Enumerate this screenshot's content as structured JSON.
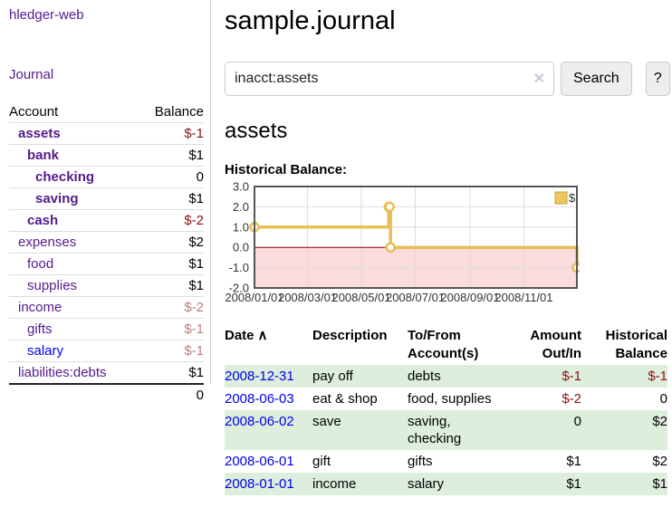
{
  "app": {
    "title": "hledger-web"
  },
  "colors": {
    "link_purple": "#551a8b",
    "link_blue": "#0000ee",
    "negative_strong": "#8b1313",
    "negative_soft": "#bc7f7f",
    "row_green": "#ddeedd",
    "chart_line_gold": "#e6bf55",
    "chart_negative_pink": "#fbdbdb",
    "zero_line_red": "#880000"
  },
  "sidebar": {
    "journal_label": "Journal",
    "table": {
      "headers": {
        "account": "Account",
        "balance": "Balance"
      },
      "rows": [
        {
          "account": "assets",
          "balance": "$-1"
        },
        {
          "account": "bank",
          "balance": "$1"
        },
        {
          "account": "checking",
          "balance": "0"
        },
        {
          "account": "saving",
          "balance": "$1"
        },
        {
          "account": "cash",
          "balance": "$-2"
        },
        {
          "account": "expenses",
          "balance": "$2"
        },
        {
          "account": "food",
          "balance": "$1"
        },
        {
          "account": "supplies",
          "balance": "$1"
        },
        {
          "account": "income",
          "balance": "$-2"
        },
        {
          "account": "gifts",
          "balance": "$-1"
        },
        {
          "account": "salary",
          "balance": "$-1"
        },
        {
          "account": "liabilities:debts",
          "balance": "$1"
        }
      ],
      "total": "0"
    }
  },
  "main": {
    "title": "sample.journal",
    "search": {
      "value": "inacct:assets",
      "clear_icon": "✕",
      "search_button": "Search",
      "help_button": "?"
    },
    "account_heading": "assets",
    "chart_label": "Historical Balance:"
  },
  "chart_data": {
    "type": "line",
    "step": true,
    "title": "Historical Balance:",
    "series": [
      {
        "name": "$",
        "points": [
          [
            "2008-01-01",
            1
          ],
          [
            "2008-06-01",
            2
          ],
          [
            "2008-06-02",
            2
          ],
          [
            "2008-06-03",
            0
          ],
          [
            "2008-12-31",
            -1
          ]
        ]
      }
    ],
    "xlim": [
      "2008-01-01",
      "2008-12-31"
    ],
    "ylim": [
      -2,
      3
    ],
    "yticks": [
      3,
      2,
      1,
      0,
      -1,
      -2
    ],
    "ytick_labels": [
      "3.0",
      "2.0",
      "1.0",
      "0.0",
      "-1.0",
      "-2.0"
    ],
    "xticks": [
      "2008-01-01",
      "2008-03-01",
      "2008-05-01",
      "2008-07-01",
      "2008-09-01",
      "2008-11-01"
    ],
    "xtick_labels": [
      "2008/01/01",
      "2008/03/01",
      "2008/05/01",
      "2008/07/01",
      "2008/09/01",
      "2008/11/01"
    ],
    "legend": {
      "label": "$",
      "position": "top-right"
    },
    "grid": true,
    "line_color": "#e6bf55",
    "negative_region_fill": "#fbdbdb",
    "zero_line_color": "#880000"
  },
  "register": {
    "headers": {
      "date": "Date",
      "sort_icon": "∧",
      "description": "Description",
      "accounts": "To/From Account(s)",
      "amount": "Amount Out/In",
      "balance": "Historical Balance"
    },
    "rows": [
      {
        "date": "2008-12-31",
        "description": "pay off",
        "accounts": "debts",
        "amount": "$-1",
        "balance": "$-1"
      },
      {
        "date": "2008-06-03",
        "description": "eat & shop",
        "accounts": "food, supplies",
        "amount": "$-2",
        "balance": "0"
      },
      {
        "date": "2008-06-02",
        "description": "save",
        "accounts": "saving, checking",
        "amount": "0",
        "balance": "$2"
      },
      {
        "date": "2008-06-01",
        "description": "gift",
        "accounts": "gifts",
        "amount": "$1",
        "balance": "$2"
      },
      {
        "date": "2008-01-01",
        "description": "income",
        "accounts": "salary",
        "amount": "$1",
        "balance": "$1"
      }
    ]
  }
}
